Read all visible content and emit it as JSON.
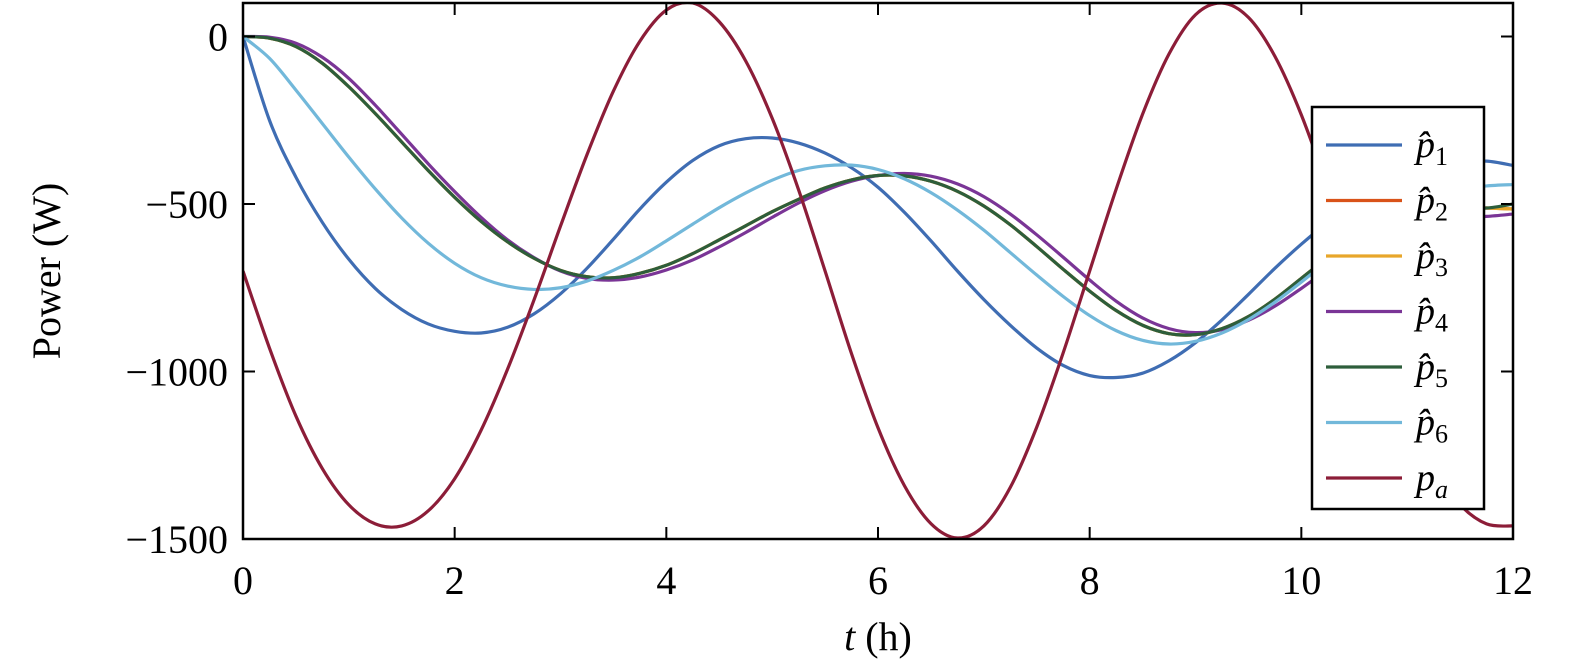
{
  "chart_data": {
    "type": "line",
    "xlabel_var": "t",
    "xlabel_unit": "(h)",
    "ylabel": "Power (W)",
    "xlim": [
      0,
      12
    ],
    "ylim": [
      -1500,
      100
    ],
    "xticks": [
      0,
      2,
      4,
      6,
      8,
      10,
      12
    ],
    "xtick_labels": [
      "0",
      "2",
      "4",
      "6",
      "8",
      "10",
      "12"
    ],
    "yticks": [
      0,
      -500,
      -1000,
      -1500
    ],
    "ytick_labels": [
      "0",
      "−500",
      "−1000",
      "−1500"
    ],
    "grid": false,
    "legend_position": "right",
    "x": [
      0,
      0.25,
      0.5,
      0.75,
      1,
      1.25,
      1.5,
      1.75,
      2,
      2.25,
      2.5,
      2.75,
      3,
      3.25,
      3.5,
      3.75,
      4,
      4.25,
      4.5,
      4.75,
      5,
      5.25,
      5.5,
      5.75,
      6,
      6.25,
      6.5,
      6.75,
      7,
      7.25,
      7.5,
      7.75,
      8,
      8.25,
      8.5,
      8.75,
      9,
      9.25,
      9.5,
      9.75,
      10,
      10.25,
      10.5,
      10.75,
      11,
      11.25,
      11.5,
      11.75,
      12
    ],
    "series": [
      {
        "name": "p̂",
        "sub": "1",
        "color": "#3f6db3",
        "values": [
          0,
          -250,
          -420,
          -555,
          -665,
          -752,
          -815,
          -858,
          -880,
          -885,
          -868,
          -828,
          -768,
          -692,
          -605,
          -515,
          -435,
          -370,
          -326,
          -305,
          -303,
          -318,
          -348,
          -392,
          -450,
          -525,
          -610,
          -700,
          -785,
          -862,
          -930,
          -982,
          -1012,
          -1018,
          -1005,
          -968,
          -914,
          -846,
          -770,
          -692,
          -620,
          -555,
          -500,
          -456,
          -420,
          -395,
          -378,
          -372,
          -385
        ]
      },
      {
        "name": "p̂",
        "sub": "2",
        "color": "#d95319",
        "values": [
          0,
          -5,
          -30,
          -80,
          -150,
          -230,
          -315,
          -400,
          -480,
          -552,
          -613,
          -662,
          -698,
          -717,
          -720,
          -707,
          -683,
          -648,
          -607,
          -565,
          -523,
          -486,
          -452,
          -428,
          -415,
          -416,
          -432,
          -462,
          -506,
          -562,
          -627,
          -695,
          -760,
          -818,
          -862,
          -887,
          -890,
          -872,
          -836,
          -784,
          -722,
          -660,
          -605,
          -562,
          -532,
          -515,
          -510,
          -512,
          -515
        ]
      },
      {
        "name": "p̂",
        "sub": "3",
        "color": "#e8a62a",
        "values": [
          0,
          -5,
          -30,
          -80,
          -150,
          -230,
          -315,
          -400,
          -480,
          -552,
          -613,
          -662,
          -698,
          -717,
          -720,
          -707,
          -683,
          -648,
          -607,
          -565,
          -523,
          -486,
          -452,
          -428,
          -415,
          -416,
          -432,
          -462,
          -506,
          -562,
          -627,
          -695,
          -760,
          -818,
          -862,
          -887,
          -890,
          -872,
          -836,
          -784,
          -722,
          -660,
          -605,
          -562,
          -532,
          -515,
          -510,
          -512,
          -515
        ]
      },
      {
        "name": "p̂",
        "sub": "4",
        "color": "#7a3596",
        "values": [
          0,
          -2,
          -20,
          -62,
          -125,
          -205,
          -292,
          -380,
          -463,
          -540,
          -607,
          -660,
          -700,
          -722,
          -727,
          -718,
          -697,
          -667,
          -628,
          -585,
          -540,
          -497,
          -460,
          -432,
          -415,
          -409,
          -417,
          -440,
          -478,
          -530,
          -592,
          -659,
          -727,
          -790,
          -840,
          -872,
          -884,
          -875,
          -847,
          -805,
          -752,
          -695,
          -640,
          -596,
          -565,
          -548,
          -540,
          -537,
          -530
        ]
      },
      {
        "name": "p̂",
        "sub": "5",
        "color": "#2d5e3b",
        "values": [
          0,
          -5,
          -30,
          -80,
          -150,
          -230,
          -315,
          -400,
          -480,
          -552,
          -613,
          -662,
          -698,
          -717,
          -720,
          -707,
          -683,
          -648,
          -607,
          -565,
          -523,
          -486,
          -452,
          -428,
          -415,
          -416,
          -432,
          -462,
          -506,
          -562,
          -627,
          -695,
          -760,
          -818,
          -862,
          -887,
          -890,
          -872,
          -836,
          -784,
          -722,
          -660,
          -605,
          -562,
          -532,
          -515,
          -510,
          -512,
          -500
        ]
      },
      {
        "name": "p̂",
        "sub": "6",
        "color": "#72b8da",
        "values": [
          0,
          -65,
          -160,
          -260,
          -360,
          -455,
          -542,
          -617,
          -677,
          -720,
          -745,
          -755,
          -750,
          -730,
          -698,
          -658,
          -610,
          -560,
          -511,
          -467,
          -429,
          -400,
          -386,
          -384,
          -397,
          -425,
          -466,
          -518,
          -578,
          -645,
          -712,
          -776,
          -833,
          -878,
          -907,
          -918,
          -910,
          -885,
          -845,
          -793,
          -733,
          -670,
          -610,
          -557,
          -513,
          -478,
          -456,
          -446,
          -442
        ]
      },
      {
        "name": "p",
        "sub": "a",
        "color": "#8c1d38",
        "values": [
          -700,
          -930,
          -1133,
          -1290,
          -1398,
          -1455,
          -1461,
          -1416,
          -1320,
          -1175,
          -993,
          -786,
          -566,
          -353,
          -163,
          -14,
          79,
          100,
          44,
          -73,
          -244,
          -458,
          -700,
          -947,
          -1168,
          -1341,
          -1454,
          -1497,
          -1461,
          -1346,
          -1166,
          -944,
          -700,
          -456,
          -232,
          -52,
          65,
          100,
          57,
          -59,
          -234,
          -454,
          -700,
          -933,
          -1135,
          -1291,
          -1398,
          -1455,
          -1461
        ]
      }
    ]
  }
}
